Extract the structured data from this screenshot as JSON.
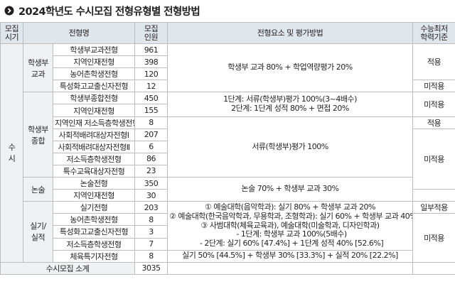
{
  "title": "2024학년도 수시모집 전형유형별 전형방법",
  "headers": {
    "period": "모집\n시기",
    "type": "전형명",
    "quota": "모집\n인원",
    "method": "전형요소 및 평가방법",
    "min": "수능최저\n학력기준"
  },
  "period": "수\n시",
  "groups": {
    "g1": "학생부\n교과",
    "g2": "학생부\n종합",
    "g3": "논술",
    "g4": "실기/\n실적"
  },
  "rows": [
    {
      "name": "학생부교과전형",
      "quota": "961"
    },
    {
      "name": "지역인재전형",
      "quota": "398"
    },
    {
      "name": "농어촌학생전형",
      "quota": "120"
    },
    {
      "name": "특성화고교출신자전형",
      "quota": "12"
    },
    {
      "name": "학생부종합전형",
      "quota": "450"
    },
    {
      "name": "지역인재전형",
      "quota": "155"
    },
    {
      "name": "지역인재 저소득층학생전형",
      "quota": "8"
    },
    {
      "name": "사회적배려대상자전형Ⅰ",
      "quota": "207"
    },
    {
      "name": "사회적배려대상자전형Ⅱ",
      "quota": "6"
    },
    {
      "name": "저소득층학생전형",
      "quota": "86"
    },
    {
      "name": "특수교육대상자전형",
      "quota": "23"
    },
    {
      "name": "논술전형",
      "quota": "350"
    },
    {
      "name": "지역인재전형",
      "quota": "30"
    },
    {
      "name": "실기전형",
      "quota": "203"
    },
    {
      "name": "농어촌학생전형",
      "quota": "8"
    },
    {
      "name": "특성화고교출신자전형",
      "quota": "3"
    },
    {
      "name": "저소득층학생전형",
      "quota": "7"
    },
    {
      "name": "체육특기자전형",
      "quota": "8"
    }
  ],
  "methods": {
    "m1": "학생부 교과 80% + 학업역량평가 20%",
    "m2_l1": "1단계: 서류(학생부)평가 100%(3~4배수)",
    "m2_l2": "2단계: 1단계 성적 80% + 면접 20%",
    "m3": "서류(학생부)평가 100%",
    "m4": "논술 70% + 학생부 교과 30%",
    "m5_l1": "① 예술대학(음악학과): 실기 80% + 학생부 교과 20%",
    "m5_l2": "② 예술대학(한국음악학과, 무용학과, 조형학과): 실기 60% + 학생부 교과 40%",
    "m5_l3": "③ 사범대학(체육교육과), 예술대학(미술학과, 디자인학과)",
    "m5_l4": "- 1단계: 학생부 교과 100%(5배수)",
    "m5_l5": "- 2단계: 실기 60% [47.4%] + 1단계 성적 40% [52.6%]",
    "m6": "실기 50% [44.5%] + 학생부 30% [33.3%] + 실적 20% [22.2%]"
  },
  "min_labels": {
    "apply": "적용",
    "not_apply": "미적용",
    "partial": "일부적용"
  },
  "total": {
    "label": "수시모집 소계",
    "value": "3035"
  }
}
